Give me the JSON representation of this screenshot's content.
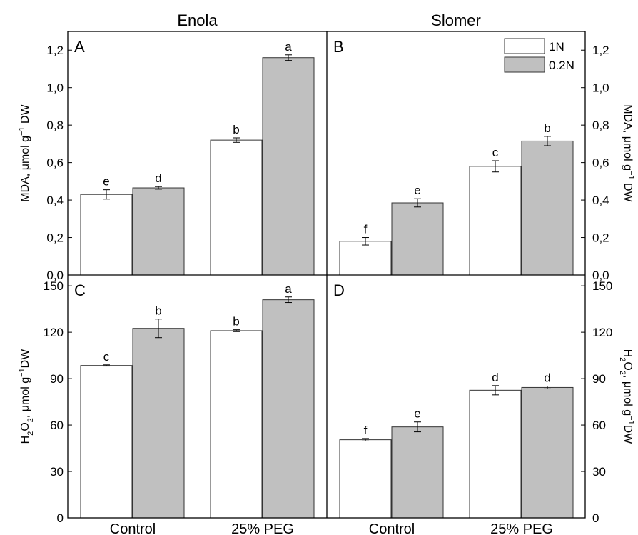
{
  "figure": {
    "column_titles": [
      "Enola",
      "Slomer"
    ],
    "legend": [
      {
        "label": "1N",
        "color": "#ffffff"
      },
      {
        "label": "0.2N",
        "color": "#c0c0c0"
      }
    ],
    "styles": {
      "axis_color": "#000000",
      "bar_stroke": "#333333"
    }
  },
  "chart_data": [
    {
      "panel": "A",
      "type": "bar",
      "cultivar": "Enola",
      "categories": [
        "Control",
        "25% PEG"
      ],
      "ylabel": {
        "prefix": "MDA, μmol g",
        "sup": "−1",
        "suffix": " DW"
      },
      "ylim": [
        0,
        1.3
      ],
      "yticks": [
        0,
        0.2,
        0.4,
        0.6,
        0.8,
        1.0,
        1.2
      ],
      "tick_labels": [
        "0,0",
        "0,2",
        "0,4",
        "0,6",
        "0,8",
        "1,0",
        "1,2"
      ],
      "series": [
        {
          "name": "1N",
          "values": [
            0.43,
            0.72
          ],
          "errors": [
            0.025,
            0.012
          ],
          "letters": [
            "e",
            "b"
          ]
        },
        {
          "name": "0.2N",
          "values": [
            0.465,
            1.16
          ],
          "errors": [
            0.007,
            0.015
          ],
          "letters": [
            "d",
            "a"
          ]
        }
      ]
    },
    {
      "panel": "B",
      "type": "bar",
      "cultivar": "Slomer",
      "categories": [
        "Control",
        "25% PEG"
      ],
      "ylabel": {
        "prefix": "MDA, μmol g",
        "sup": "−1",
        "suffix": " DW"
      },
      "ylim": [
        0,
        1.3
      ],
      "yticks": [
        0,
        0.2,
        0.4,
        0.6,
        0.8,
        1.0,
        1.2
      ],
      "tick_labels": [
        "0,0",
        "0,2",
        "0,4",
        "0,6",
        "0,8",
        "1,0",
        "1,2"
      ],
      "series": [
        {
          "name": "1N",
          "values": [
            0.18,
            0.58
          ],
          "errors": [
            0.02,
            0.03
          ],
          "letters": [
            "f",
            "c"
          ]
        },
        {
          "name": "0.2N",
          "values": [
            0.385,
            0.715
          ],
          "errors": [
            0.022,
            0.025
          ],
          "letters": [
            "e",
            "b"
          ]
        }
      ]
    },
    {
      "panel": "C",
      "type": "bar",
      "cultivar": "Enola",
      "categories": [
        "Control",
        "25% PEG"
      ],
      "ylabel": {
        "prefix": "H",
        "sub1": "2",
        "mid": "O",
        "sub2": "2",
        "rest": ", μmol g",
        "sup": "−1",
        "suffix": "DW"
      },
      "ylim": [
        0,
        157
      ],
      "yticks": [
        0,
        30,
        60,
        90,
        120,
        150
      ],
      "tick_labels": [
        "0",
        "30",
        "60",
        "90",
        "120",
        "150"
      ],
      "series": [
        {
          "name": "1N",
          "values": [
            98.5,
            121
          ],
          "errors": [
            0.4,
            0.6
          ],
          "letters": [
            "c",
            "b"
          ]
        },
        {
          "name": "0.2N",
          "values": [
            122.5,
            141
          ],
          "errors": [
            6,
            1.8
          ],
          "letters": [
            "b",
            "a"
          ]
        }
      ]
    },
    {
      "panel": "D",
      "type": "bar",
      "cultivar": "Slomer",
      "categories": [
        "Control",
        "25% PEG"
      ],
      "ylabel": {
        "prefix": "H",
        "sub1": "2",
        "mid": "O",
        "sub2": "2",
        "rest": ", μmol g",
        "sup": "−1",
        "suffix": "DW"
      },
      "ylim": [
        0,
        157
      ],
      "yticks": [
        0,
        30,
        60,
        90,
        120,
        150
      ],
      "tick_labels": [
        "0",
        "30",
        "60",
        "90",
        "120",
        "150"
      ],
      "series": [
        {
          "name": "1N",
          "values": [
            50.5,
            82.5
          ],
          "errors": [
            0.8,
            3
          ],
          "letters": [
            "f",
            "d"
          ]
        },
        {
          "name": "0.2N",
          "values": [
            58.8,
            84.3
          ],
          "errors": [
            3.2,
            0.9
          ],
          "letters": [
            "e",
            "d"
          ]
        }
      ]
    }
  ]
}
